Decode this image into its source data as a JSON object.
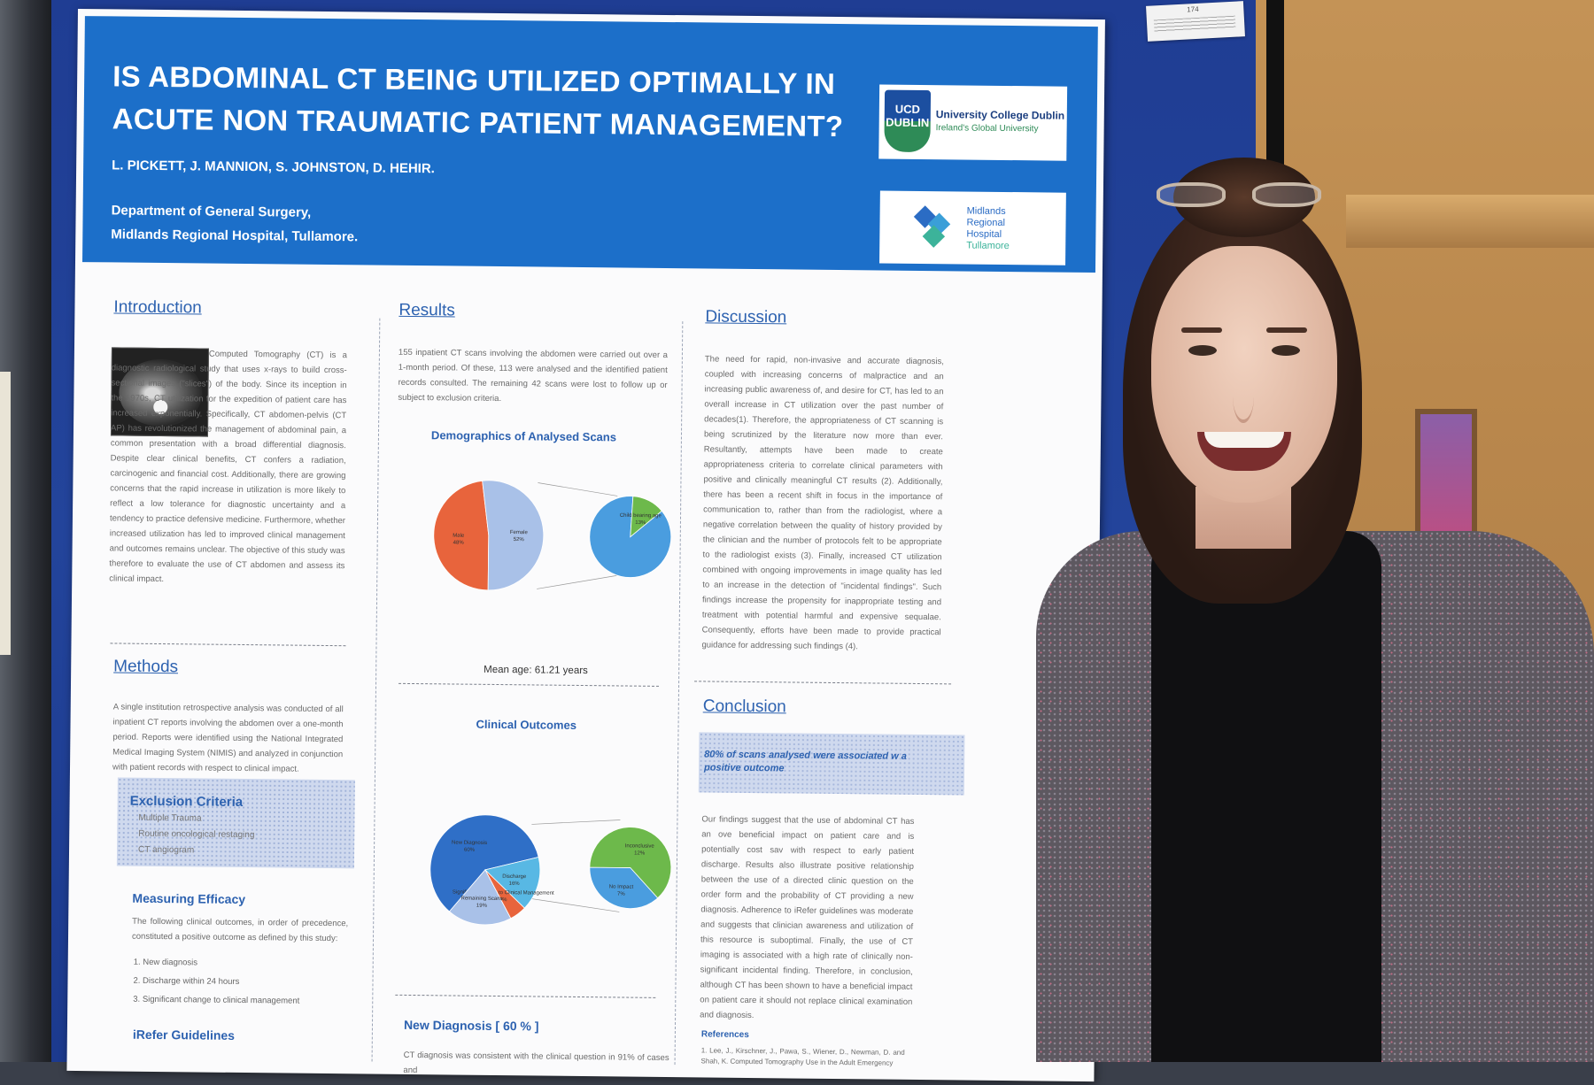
{
  "poster": {
    "title_line1": "IS ABDOMINAL CT BEING UTILIZED OPTIMALLY IN",
    "title_line2": "ACUTE NON TRAUMATIC PATIENT MANAGEMENT?",
    "authors": "L. PICKETT,  J. MANNION, S. JOHNSTON, D. HEHIR.",
    "dept_line1": "Department of General Surgery,",
    "dept_line2": "Midlands Regional Hospital, Tullamore.",
    "logo_ucd": {
      "shield": "UCD DUBLIN",
      "name": "University College Dublin",
      "tagline": "Ireland's Global University"
    },
    "logo_mrh": {
      "line1": "Midlands",
      "line2": "Regional",
      "line3": "Hospital",
      "line4": "Tullamore"
    },
    "introduction": {
      "heading": "Introduction",
      "text": "Computed Tomography (CT) is a diagnostic radiological study that uses x-rays to build cross-sectional images (\"slices\") of the body. Since its inception in the 1970s, CT utilization for the expedition of patient care has increased exponentially. Specifically, CT abdomen-pelvis (CT AP) has revolutionized the management of abdominal pain, a common presentation with a broad differential diagnosis. Despite clear clinical benefits, CT confers a radiation, carcinogenic and financial cost. Additionally, there are growing concerns that the rapid increase in utilization is more likely to reflect a low tolerance for diagnostic uncertainty and a tendency to practice defensive medicine. Furthermore, whether increased utilization has led to improved clinical management and outcomes remains unclear. The objective of this study was therefore to evaluate the use of CT abdomen and assess its clinical impact."
    },
    "methods": {
      "heading": "Methods",
      "text": "A single institution retrospective analysis was conducted of all inpatient CT reports involving the abdomen over a one-month period. Reports were identified using the National Integrated Medical Imaging System (NIMIS) and analyzed in conjunction with patient records with respect to clinical impact.",
      "exclusion_heading": "Exclusion  Criteria",
      "exclusion_items": [
        "Multiple Trauma",
        "Routine oncological restaging",
        "CT angiogram"
      ],
      "efficacy_heading": "Measuring  Efficacy",
      "efficacy_text": "The following clinical outcomes, in order of precedence, constituted a positive outcome as defined by this study:",
      "efficacy_items": [
        "1.   New diagnosis",
        "2.  Discharge within 24 hours",
        "3.  Significant change to clinical management"
      ],
      "irefer_heading": "iRefer Guidelines"
    },
    "results": {
      "heading": "Results",
      "text": "155 inpatient CT scans involving the abdomen were carried out over a 1-month period. Of these, 113 were analysed and the identified patient records consulted. The remaining 42 scans were lost to follow up or subject to exclusion criteria.",
      "demographics_title": "Demographics of Analysed Scans",
      "mean_age": "Mean age: 61.21 years",
      "outcomes_title": "Clinical Outcomes",
      "new_dx_heading": "New Diagnosis  [ 60 % ]",
      "new_dx_text": "CT diagnosis was consistent with the clinical question in 91% of cases and"
    },
    "discussion": {
      "heading": "Discussion",
      "text": "The need for rapid, non-invasive and accurate diagnosis, coupled with increasing concerns of malpractice and an increasing public awareness of, and desire for CT, has led to an overall increase in CT utilization over the past number of decades(1). Therefore, the appropriateness of CT scanning is being scrutinized by the literature now more than ever. Resultantly, attempts have been made to create appropriateness criteria to correlate clinical parameters with positive and clinically meaningful CT results (2). Additionally, there has been a recent shift in focus in the importance of communication to, rather than from the radiologist, where a negative correlation between the quality of history provided by the clinician and the number of protocols felt to be appropriate to the radiologist exists (3). Finally, increased CT utilization combined with ongoing improvements in image quality has led to an increase in the detection of \"incidental findings\". Such findings increase the propensity for inappropriate testing and treatment with potential harmful and expensive sequalae. Consequently, efforts have been made to provide practical guidance for addressing such findings (4)."
    },
    "conclusion": {
      "heading": "Conclusion",
      "highlight": "80% of scans analysed were associated w a positive outcome",
      "text": "Our findings suggest that the use of abdominal CT has an ove beneficial impact on patient care and is potentially cost sav with respect to early patient discharge. Results also illustrate positive relationship between the use of a directed clinic question on the order form and the probability of CT providing a new diagnosis. Adherence to iRefer guidelines was moderate and suggests that clinician awareness and utilization of this resource is suboptimal. Finally, the use of CT imaging is associated with a high rate of clinically non-significant incidental finding. Therefore, in conclusion, although CT has been shown to have a beneficial impact on patient care it should not replace clinical examination and diagnosis.",
      "references_heading": "References",
      "references_text": "1. Lee, J., Kirschner, J., Pawa, S., Wiener, D., Newman, D. and Shah, K. Computed Tomography Use in the Adult Emergency"
    }
  },
  "poster_tag": {
    "number": "174"
  },
  "colors": {
    "header_blue": "#1c6fc9",
    "heading_blue": "#2d62b0",
    "board_blue": "#1f3d93"
  },
  "chart_data": [
    {
      "type": "pie",
      "title": "Demographics of Analysed Scans",
      "slices": [
        {
          "label": "Male",
          "pct_label": "48%",
          "value": 48,
          "color": "#e8643c"
        },
        {
          "label": "Female",
          "pct_label": "52%",
          "value": 52,
          "color": "#a9c1e8"
        }
      ],
      "breakout": {
        "slices": [
          {
            "label": "",
            "value": 87,
            "color": "#4a9ddf"
          },
          {
            "label": "Child bearing age",
            "pct_label": "13%",
            "value": 13,
            "color": "#6db94b"
          }
        ]
      }
    },
    {
      "type": "pie",
      "title": "Clinical Outcomes",
      "slices": [
        {
          "label": "New Diagnosis",
          "pct_label": "60%",
          "value": 60,
          "color": "#2f6fc7"
        },
        {
          "label": "Discharge",
          "pct_label": "16%",
          "value": 16,
          "color": "#58b8e4"
        },
        {
          "label": "Significant Change to Clinical Management",
          "pct_label": "5%",
          "value": 5,
          "color": "#e8643c"
        },
        {
          "label": "Remaining Scans",
          "pct_label": "19%",
          "value": 19,
          "color": "#a9c1e8"
        }
      ],
      "breakout": {
        "slices": [
          {
            "label": "Inconclusive",
            "pct_label": "12%",
            "value": 12,
            "color": "#6db94b"
          },
          {
            "label": "No Impact",
            "pct_label": "7%",
            "value": 7,
            "color": "#4a9ddf"
          }
        ]
      }
    }
  ]
}
